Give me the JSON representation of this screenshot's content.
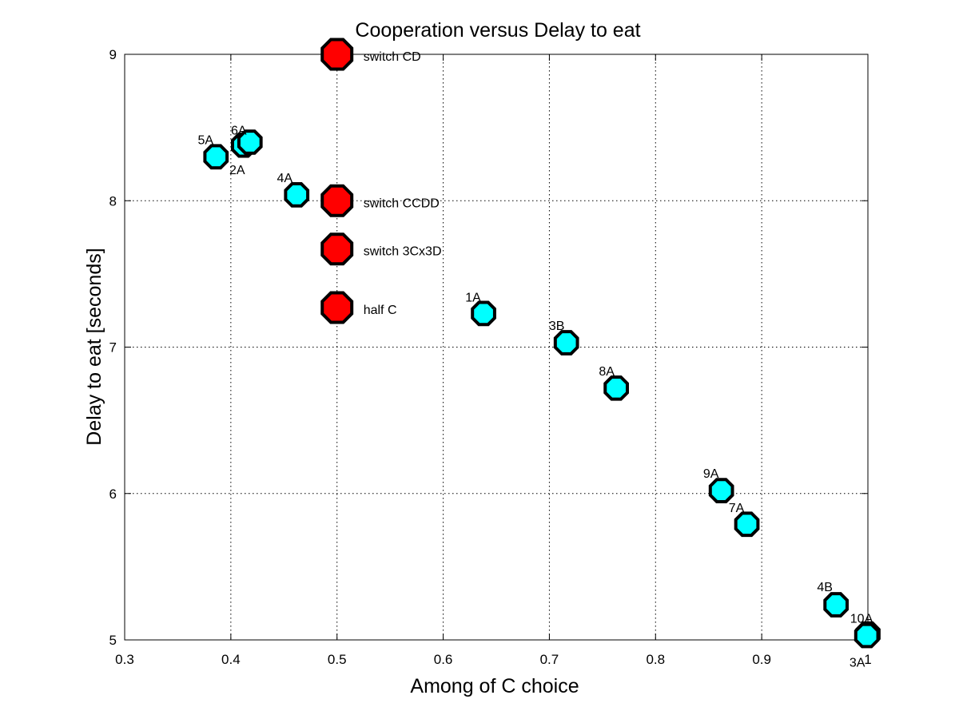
{
  "chart_data": {
    "type": "scatter",
    "title": "Cooperation versus Delay to eat",
    "xlabel": "Among of C choice",
    "ylabel": "Delay to eat [seconds]",
    "xlim": [
      0.3,
      1.0
    ],
    "ylim": [
      5,
      9
    ],
    "grid": true,
    "xticks": [
      0.3,
      0.4,
      0.5,
      0.6,
      0.7,
      0.8,
      0.9,
      1.0
    ],
    "xtick_labels": [
      "0.3",
      "0.4",
      "0.5",
      "0.6",
      "0.7",
      "0.8",
      "0.9",
      "1"
    ],
    "yticks": [
      5,
      6,
      7,
      8,
      9
    ],
    "ytick_labels": [
      "5",
      "6",
      "7",
      "8",
      "9"
    ],
    "colors": {
      "subjects": "#00ffff",
      "reference": "#ff0000",
      "outline": "#000000"
    },
    "series": [
      {
        "points": [
          {
            "label": "5A",
            "x": 0.386,
            "y": 8.3
          },
          {
            "label": "6A",
            "x": 0.412,
            "y": 8.38
          },
          {
            "label": "2A",
            "x": 0.418,
            "y": 8.4
          },
          {
            "label": "4A",
            "x": 0.462,
            "y": 8.04
          },
          {
            "label": "1A",
            "x": 0.638,
            "y": 7.23
          },
          {
            "label": "3B",
            "x": 0.716,
            "y": 7.03
          },
          {
            "label": "8A",
            "x": 0.763,
            "y": 6.72
          },
          {
            "label": "9A",
            "x": 0.862,
            "y": 6.02
          },
          {
            "label": "7A",
            "x": 0.886,
            "y": 5.79
          },
          {
            "label": "4B",
            "x": 0.97,
            "y": 5.24
          },
          {
            "label": "10A",
            "x": 1.0,
            "y": 5.04
          },
          {
            "label": "3A",
            "x": 0.999,
            "y": 5.03
          }
        ]
      },
      {
        "points": [
          {
            "label": "switch CD",
            "x": 0.5,
            "y": 9.0
          },
          {
            "label": "switch CCDD",
            "x": 0.5,
            "y": 8.0
          },
          {
            "label": "switch 3Cx3D",
            "x": 0.5,
            "y": 7.67
          },
          {
            "label": "half C",
            "x": 0.5,
            "y": 7.27
          }
        ]
      }
    ]
  }
}
